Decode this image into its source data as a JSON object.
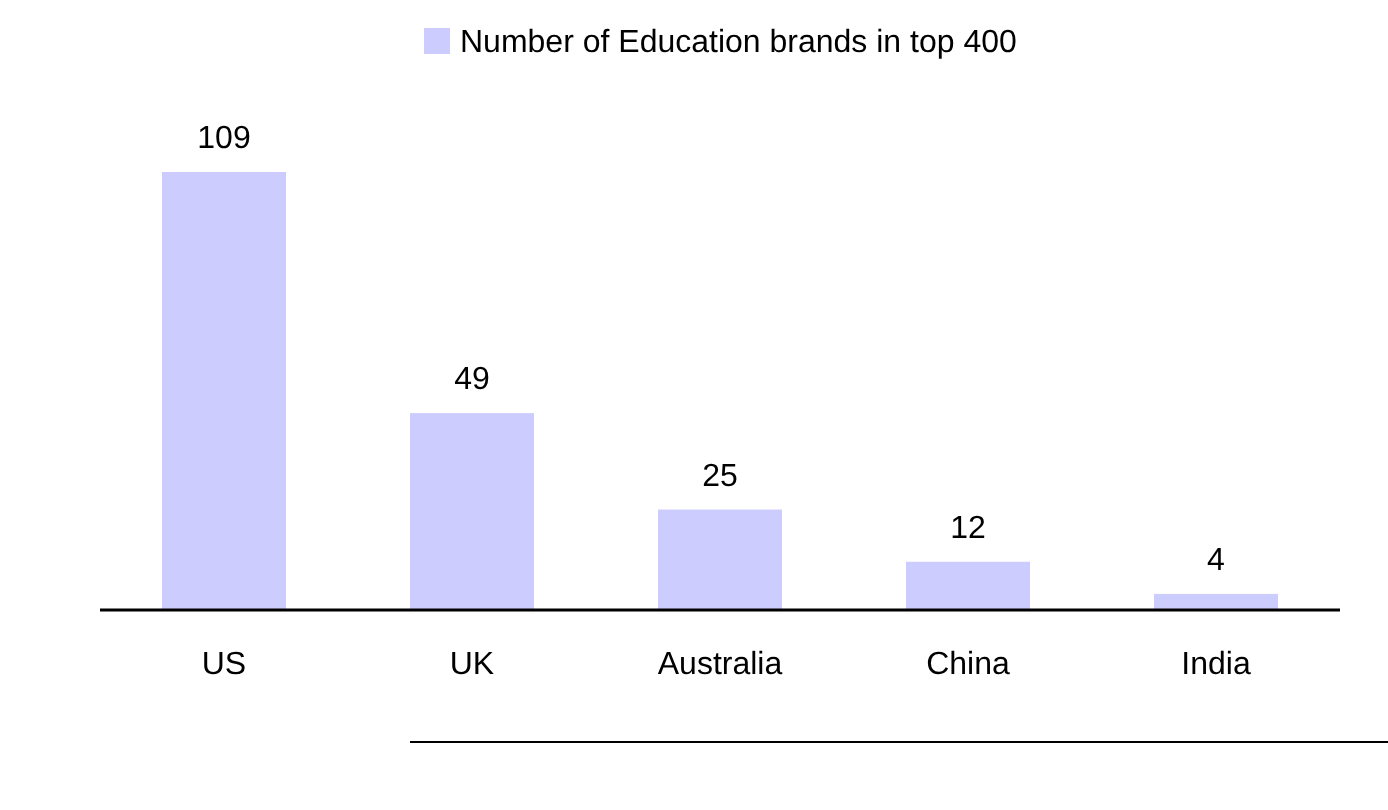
{
  "chart_data": {
    "type": "bar",
    "categories": [
      "US",
      "UK",
      "Australia",
      "China",
      "India"
    ],
    "series": [
      {
        "name": "Number of Education brands in top 400",
        "color": "#ccccff",
        "values": [
          109,
          49,
          25,
          12,
          4
        ]
      }
    ],
    "data_labels": true,
    "legend": "top"
  }
}
